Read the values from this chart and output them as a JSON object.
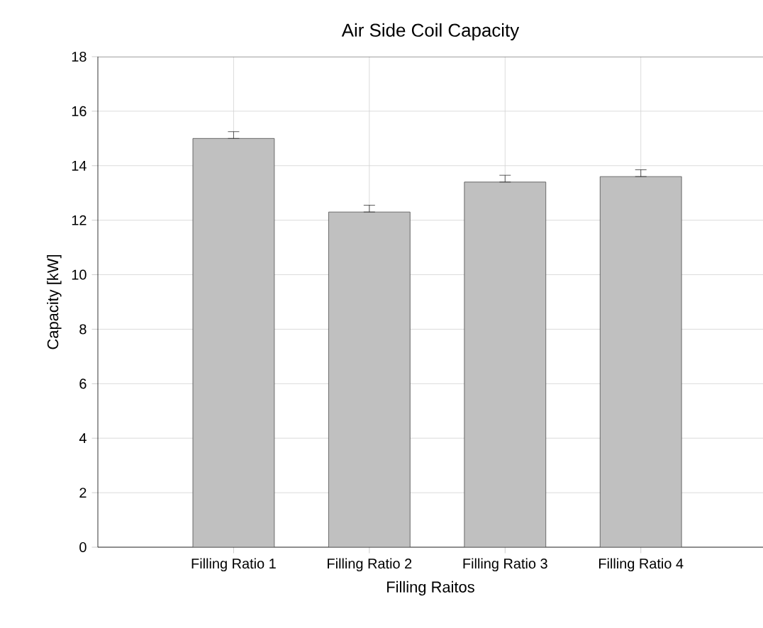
{
  "chart_data": {
    "type": "bar",
    "title": "Air Side Coil Capacity",
    "xlabel": "Filling Raitos",
    "ylabel": "Capacity [kW]",
    "categories": [
      "Filling Ratio 1",
      "Filling Ratio 2",
      "Filling Ratio 3",
      "Filling Ratio 4"
    ],
    "values": [
      15.0,
      12.3,
      13.4,
      13.6
    ],
    "errors": [
      [
        15.0,
        15.25
      ],
      [
        12.3,
        12.55
      ],
      [
        13.4,
        13.65
      ],
      [
        13.6,
        13.85
      ]
    ],
    "color": "#c0c0c0",
    "ylim": [
      0,
      18
    ],
    "yticks": [
      0,
      2,
      4,
      6,
      8,
      10,
      12,
      14,
      16,
      18
    ],
    "grid": true
  }
}
